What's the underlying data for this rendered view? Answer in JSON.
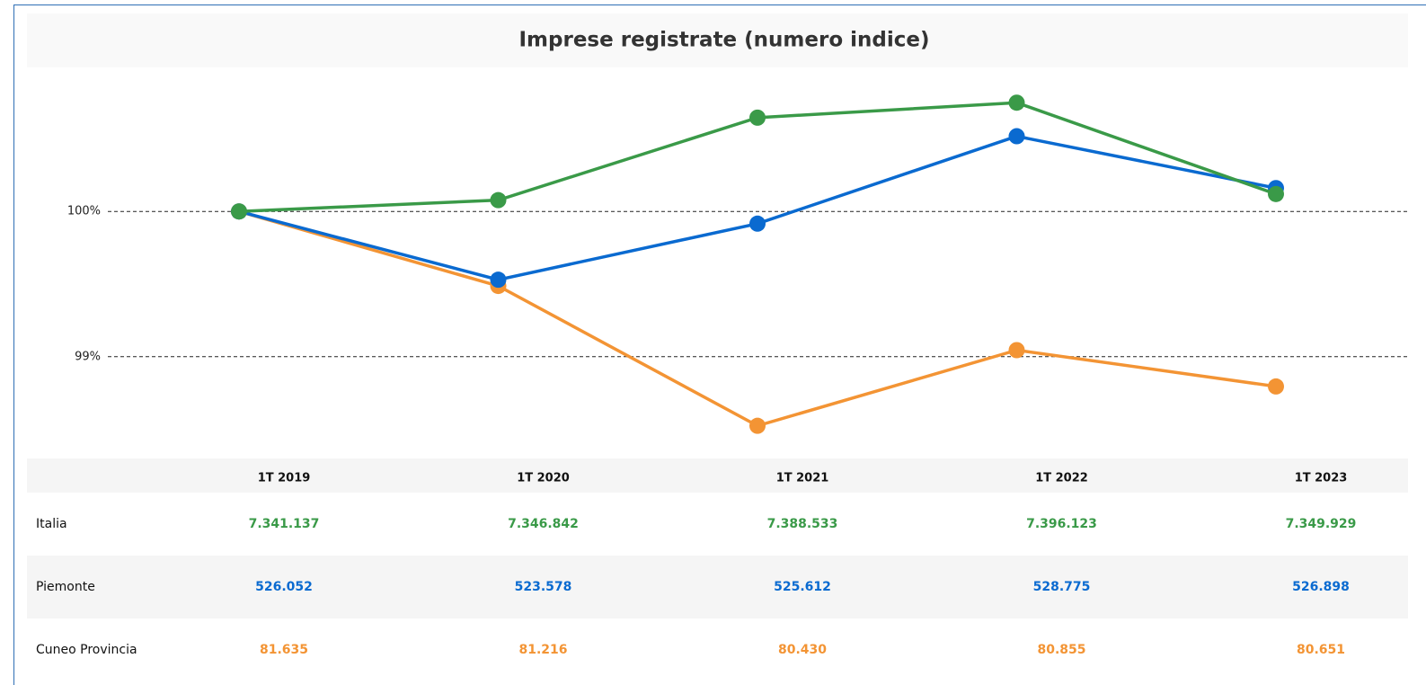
{
  "chart_data": {
    "type": "line",
    "title": "Imprese registrate (numero indice)",
    "categories": [
      "1T 2019",
      "1T 2020",
      "1T 2021",
      "1T 2022",
      "1T 2023"
    ],
    "ylim": [
      98.33,
      100.93
    ],
    "yticks": [
      {
        "value": 99,
        "label": "99%"
      },
      {
        "value": 100,
        "label": "100%"
      }
    ],
    "grid": true,
    "series": [
      {
        "name": "Italia",
        "color": "#3a9a48",
        "values": [
          100,
          100.078,
          100.646,
          100.749,
          100.12
        ],
        "counts": [
          "7.341.137",
          "7.346.842",
          "7.388.533",
          "7.396.123",
          "7.349.929"
        ]
      },
      {
        "name": "Piemonte",
        "color": "#0a6ad0",
        "values": [
          100,
          99.53,
          99.916,
          100.518,
          100.161
        ],
        "counts": [
          "526.052",
          "523.578",
          "525.612",
          "528.775",
          "526.898"
        ]
      },
      {
        "name": "Cuneo Provincia",
        "color": "#f39434",
        "values": [
          100,
          99.487,
          98.524,
          99.045,
          98.795
        ],
        "counts": [
          "81.635",
          "81.216",
          "80.430",
          "80.855",
          "80.651"
        ]
      }
    ]
  }
}
